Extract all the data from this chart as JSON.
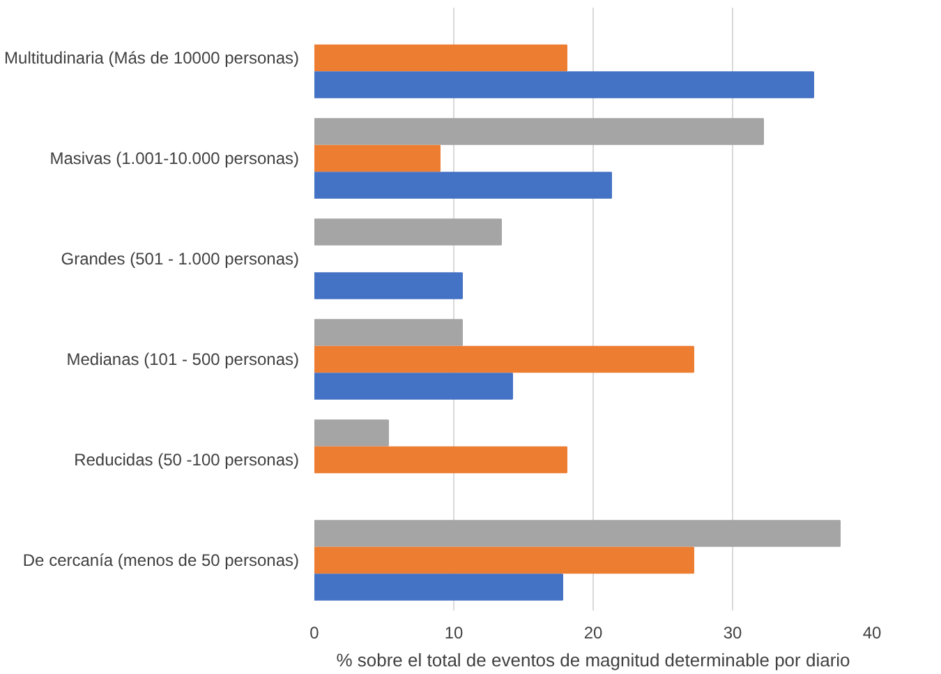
{
  "chart_data": {
    "type": "bar",
    "orientation": "horizontal",
    "xlabel": "% sobre el total de eventos de magnitud determinable por diario",
    "categories": [
      "Multitudinaria (Más de 10000 personas)",
      "Masivas (1.001-10.000 personas)",
      "Grandes (501 - 1.000 personas)",
      "Medianas (101 - 500 personas)",
      "Reducidas (50 -100 personas)",
      "De cercanía (menos de 50 personas)"
    ],
    "series": [
      {
        "color": "#a5a5a5",
        "values": [
          null,
          32.2,
          13.4,
          10.6,
          5.3,
          37.7
        ]
      },
      {
        "color": "#ed7d31",
        "values": [
          18.1,
          9.0,
          null,
          27.2,
          18.1,
          27.2
        ]
      },
      {
        "color": "#4472c4",
        "values": [
          35.8,
          21.3,
          10.6,
          14.2,
          null,
          17.8
        ]
      }
    ],
    "xlim": [
      0,
      40
    ],
    "xticks": [
      0,
      10,
      20,
      30,
      40
    ],
    "grid": "x"
  }
}
